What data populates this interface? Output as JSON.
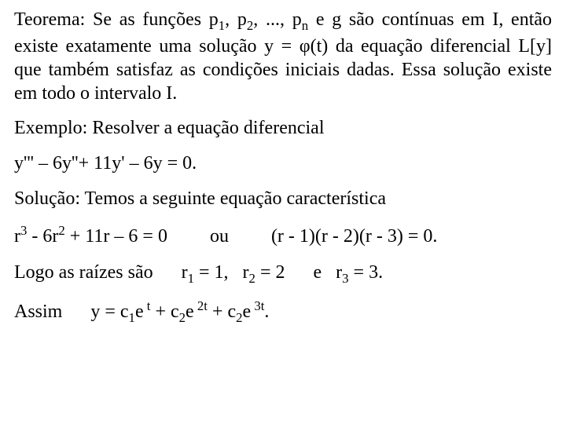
{
  "doc": {
    "background_color": "#ffffff",
    "text_color": "#000000",
    "font_family": "Times New Roman",
    "base_fontsize_pt": 18,
    "theorem": {
      "label": "Teorema:",
      "p_prefix": "Se as funções  p",
      "seq_sep1": ", p",
      "seq_sep2": ", ..., p",
      "after_pn": " e g são contínuas em I, então existe exatamente uma solução   y = φ(t) da equação diferencial L[y] que também satisfaz as condições iniciais dadas. Essa solução existe em todo o intervalo I.",
      "sub1": "1",
      "sub2": "2",
      "subn": "n"
    },
    "example_label": "Exemplo: Resolver a equação diferencial",
    "ode": "y''' – 6y''+ 11y' – 6y = 0.",
    "solution_label": "Solução: Temos a seguinte equação característica",
    "char_eq": {
      "r3_pre": "r",
      "sup3": "3",
      "mid1": "  - 6r",
      "sup2": "2",
      "mid2": " + 11r – 6 = 0",
      "ou": "ou",
      "factored": "(r - 1)(r - 2)(r - 3) = 0."
    },
    "roots": {
      "lead": "Logo as raízes são",
      "r1_pre": "r",
      "s1": "1",
      "r1_val": " = 1,",
      "r2_pre": "r",
      "s2": "2",
      "r2_val": " =  2",
      "e": "e",
      "r3_pre": "r",
      "s3": "3",
      "r3_val": " = 3."
    },
    "solution": {
      "lead": "Assim",
      "y_eq": "y = c",
      "s1": "1",
      "e1": "e",
      "exp_t": " t",
      "plus1": "  + c",
      "s2": "2",
      "e2": "e",
      "exp_2t": " 2t",
      "plus2": "  + c",
      "s3": "2",
      "e3": "e",
      "exp_3t": " 3t",
      "dot": "."
    }
  }
}
